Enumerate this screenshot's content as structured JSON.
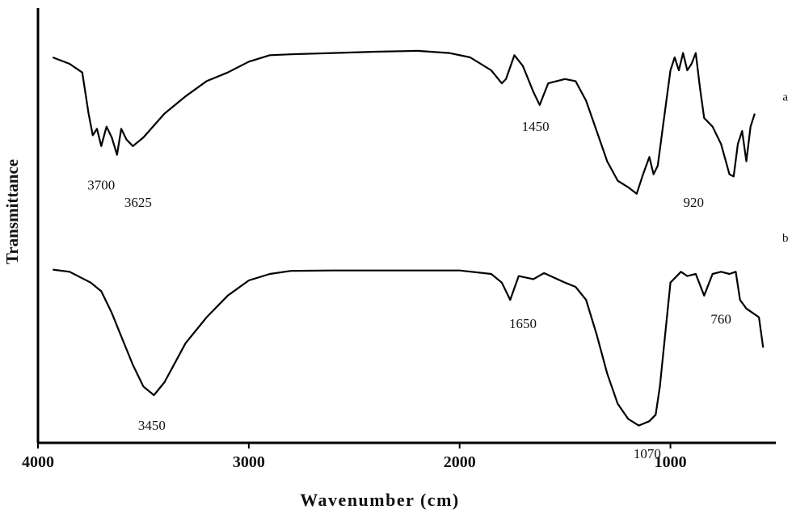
{
  "chart_data": {
    "type": "line",
    "xlabel": "Wavenumber (cm)",
    "ylabel": "Transmittance",
    "xlim": [
      4000,
      500
    ],
    "ylim": [
      0,
      10
    ],
    "x_reversed": true,
    "grid": false,
    "x_ticks": [
      {
        "value": 4000,
        "label": "4000"
      },
      {
        "value": 3000,
        "label": "3000"
      },
      {
        "value": 2000,
        "label": "2000"
      },
      {
        "value": 1000,
        "label": "1000"
      }
    ],
    "series": [
      {
        "name": "a",
        "points": [
          [
            3930,
            8.9
          ],
          [
            3850,
            8.75
          ],
          [
            3790,
            8.55
          ],
          [
            3760,
            7.6
          ],
          [
            3740,
            7.1
          ],
          [
            3720,
            7.25
          ],
          [
            3700,
            6.85
          ],
          [
            3675,
            7.3
          ],
          [
            3650,
            7.05
          ],
          [
            3625,
            6.65
          ],
          [
            3605,
            7.25
          ],
          [
            3580,
            7.0
          ],
          [
            3550,
            6.85
          ],
          [
            3500,
            7.05
          ],
          [
            3400,
            7.6
          ],
          [
            3300,
            8.0
          ],
          [
            3200,
            8.35
          ],
          [
            3100,
            8.55
          ],
          [
            3000,
            8.8
          ],
          [
            2900,
            8.95
          ],
          [
            2800,
            8.97
          ],
          [
            2600,
            9.0
          ],
          [
            2400,
            9.03
          ],
          [
            2200,
            9.05
          ],
          [
            2050,
            9.0
          ],
          [
            1950,
            8.9
          ],
          [
            1850,
            8.6
          ],
          [
            1800,
            8.3
          ],
          [
            1780,
            8.4
          ],
          [
            1740,
            8.95
          ],
          [
            1700,
            8.7
          ],
          [
            1650,
            8.1
          ],
          [
            1620,
            7.8
          ],
          [
            1580,
            8.3
          ],
          [
            1500,
            8.4
          ],
          [
            1450,
            8.35
          ],
          [
            1400,
            7.9
          ],
          [
            1350,
            7.2
          ],
          [
            1300,
            6.5
          ],
          [
            1250,
            6.05
          ],
          [
            1200,
            5.9
          ],
          [
            1160,
            5.75
          ],
          [
            1130,
            6.2
          ],
          [
            1100,
            6.6
          ],
          [
            1080,
            6.2
          ],
          [
            1060,
            6.4
          ],
          [
            1030,
            7.5
          ],
          [
            1000,
            8.6
          ],
          [
            980,
            8.9
          ],
          [
            960,
            8.6
          ],
          [
            940,
            9.0
          ],
          [
            920,
            8.6
          ],
          [
            900,
            8.75
          ],
          [
            880,
            9.0
          ],
          [
            860,
            8.2
          ],
          [
            840,
            7.5
          ],
          [
            800,
            7.3
          ],
          [
            760,
            6.9
          ],
          [
            720,
            6.2
          ],
          [
            700,
            6.15
          ],
          [
            680,
            6.9
          ],
          [
            660,
            7.2
          ],
          [
            640,
            6.5
          ],
          [
            620,
            7.3
          ],
          [
            600,
            7.6
          ]
        ]
      },
      {
        "name": "b",
        "points": [
          [
            3930,
            4.0
          ],
          [
            3850,
            3.95
          ],
          [
            3750,
            3.7
          ],
          [
            3700,
            3.5
          ],
          [
            3650,
            3.0
          ],
          [
            3600,
            2.4
          ],
          [
            3550,
            1.8
          ],
          [
            3500,
            1.3
          ],
          [
            3450,
            1.1
          ],
          [
            3400,
            1.4
          ],
          [
            3350,
            1.85
          ],
          [
            3300,
            2.3
          ],
          [
            3200,
            2.9
          ],
          [
            3100,
            3.4
          ],
          [
            3000,
            3.75
          ],
          [
            2900,
            3.9
          ],
          [
            2800,
            3.97
          ],
          [
            2600,
            3.98
          ],
          [
            2400,
            3.98
          ],
          [
            2200,
            3.98
          ],
          [
            2000,
            3.98
          ],
          [
            1850,
            3.9
          ],
          [
            1800,
            3.7
          ],
          [
            1760,
            3.3
          ],
          [
            1720,
            3.85
          ],
          [
            1650,
            3.78
          ],
          [
            1600,
            3.92
          ],
          [
            1500,
            3.7
          ],
          [
            1450,
            3.6
          ],
          [
            1400,
            3.3
          ],
          [
            1350,
            2.5
          ],
          [
            1300,
            1.6
          ],
          [
            1250,
            0.9
          ],
          [
            1200,
            0.55
          ],
          [
            1150,
            0.4
          ],
          [
            1100,
            0.5
          ],
          [
            1070,
            0.65
          ],
          [
            1050,
            1.3
          ],
          [
            1000,
            3.7
          ],
          [
            950,
            3.95
          ],
          [
            920,
            3.85
          ],
          [
            880,
            3.9
          ],
          [
            840,
            3.4
          ],
          [
            800,
            3.9
          ],
          [
            760,
            3.95
          ],
          [
            720,
            3.9
          ],
          [
            690,
            3.95
          ],
          [
            670,
            3.3
          ],
          [
            640,
            3.1
          ],
          [
            610,
            3.0
          ],
          [
            580,
            2.9
          ],
          [
            560,
            2.2
          ]
        ]
      }
    ],
    "annotations": [
      {
        "text": "3700",
        "x": 3700,
        "y": 5.85
      },
      {
        "text": "3625",
        "x": 3525,
        "y": 5.45
      },
      {
        "text": "1450",
        "x": 1640,
        "y": 7.2
      },
      {
        "text": "920",
        "x": 890,
        "y": 5.45
      },
      {
        "text": "a",
        "x": 455,
        "y": 7.9
      },
      {
        "text": "1650",
        "x": 1700,
        "y": 2.65
      },
      {
        "text": "760",
        "x": 760,
        "y": 2.75
      },
      {
        "text": "3450",
        "x": 3460,
        "y": 0.3
      },
      {
        "text": "1070",
        "x": 1110,
        "y": -0.35
      },
      {
        "text": "b",
        "x": 455,
        "y": 4.65
      }
    ]
  }
}
